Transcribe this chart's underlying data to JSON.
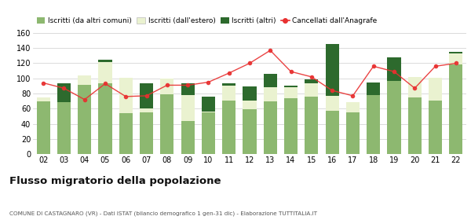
{
  "years": [
    "02",
    "03",
    "04",
    "05",
    "06",
    "07",
    "08",
    "09",
    "10",
    "11",
    "12",
    "13",
    "14",
    "15",
    "16",
    "17",
    "18",
    "19",
    "20",
    "21",
    "22"
  ],
  "iscritti_altri_comuni": [
    70,
    69,
    91,
    93,
    54,
    55,
    79,
    44,
    55,
    71,
    59,
    70,
    74,
    76,
    57,
    55,
    78,
    97,
    75,
    71,
    118
  ],
  "iscritti_estero": [
    5,
    0,
    13,
    29,
    47,
    5,
    21,
    34,
    1,
    19,
    12,
    18,
    14,
    18,
    20,
    14,
    0,
    0,
    27,
    30,
    15
  ],
  "iscritti_altri": [
    0,
    24,
    0,
    3,
    0,
    34,
    0,
    16,
    20,
    3,
    18,
    18,
    2,
    5,
    68,
    0,
    17,
    31,
    0,
    0,
    2
  ],
  "cancellati": [
    94,
    87,
    72,
    93,
    76,
    77,
    91,
    91,
    95,
    107,
    120,
    137,
    109,
    102,
    84,
    77,
    116,
    109,
    87,
    116,
    120
  ],
  "color_altri_comuni": "#8db870",
  "color_estero": "#eaf2d0",
  "color_altri": "#2d6a2d",
  "color_cancellati": "#e83030",
  "ylim": [
    0,
    160
  ],
  "yticks": [
    0,
    20,
    40,
    60,
    80,
    100,
    120,
    140,
    160
  ],
  "title": "Flusso migratorio della popolazione",
  "subtitle": "COMUNE DI CASTAGNARO (VR) - Dati ISTAT (bilancio demografico 1 gen-31 dic) - Elaborazione TUTTITALIA.IT",
  "legend_labels": [
    "Iscritti (da altri comuni)",
    "Iscritti (dall'estero)",
    "Iscritti (altri)",
    "Cancellati dall'Anagrafe"
  ],
  "background_color": "#ffffff",
  "grid_color": "#cccccc",
  "bar_width": 0.65
}
